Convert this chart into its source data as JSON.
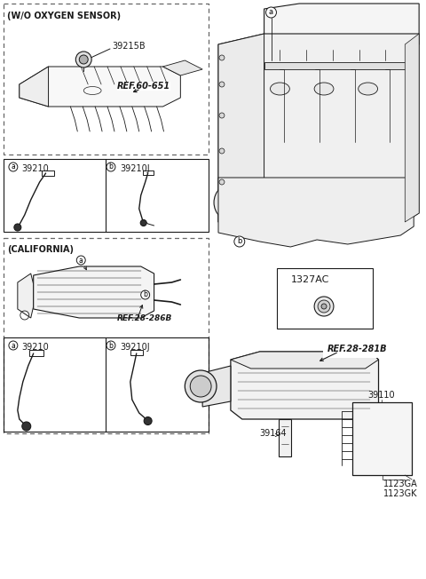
{
  "bg_color": "#ffffff",
  "lc": "#1a1a1a",
  "dc": "#666666",
  "sections": {
    "wo_label": "(W/O OXYGEN SENSOR)",
    "part_39215b": "39215B",
    "ref_60_651": "REF.60-651",
    "a_part": "39210",
    "b_part": "39210J",
    "cal_label": "(CALIFORNIA)",
    "cal_ref": "REF.28-286B",
    "cal_a_part": "39210",
    "cal_b_part": "39210J",
    "engine_a": "a",
    "engine_b": "b",
    "part_1327ac": "1327AC",
    "ref_28_281b": "REF.28-281B",
    "part_39110": "39110",
    "part_39164": "39164",
    "part_1123ga": "1123GA",
    "part_1123gk": "1123GK"
  }
}
